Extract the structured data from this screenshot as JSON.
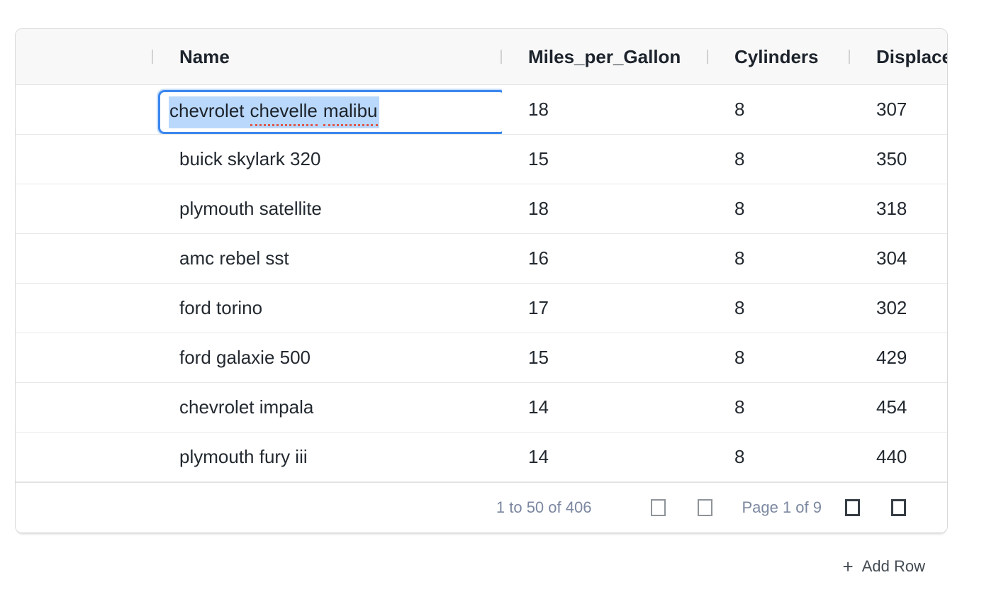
{
  "grid": {
    "columns": [
      {
        "label": ""
      },
      {
        "label": "Name"
      },
      {
        "label": "Miles_per_Gallon"
      },
      {
        "label": "Cylinders"
      },
      {
        "label": "Displacement"
      }
    ],
    "rows": [
      {
        "name": "chevrolet chevelle malibu",
        "mpg": "18",
        "cylinders": "8",
        "displacement": "307",
        "editing": true
      },
      {
        "name": "buick skylark 320",
        "mpg": "15",
        "cylinders": "8",
        "displacement": "350"
      },
      {
        "name": "plymouth satellite",
        "mpg": "18",
        "cylinders": "8",
        "displacement": "318"
      },
      {
        "name": "amc rebel sst",
        "mpg": "16",
        "cylinders": "8",
        "displacement": "304"
      },
      {
        "name": "ford torino",
        "mpg": "17",
        "cylinders": "8",
        "displacement": "302"
      },
      {
        "name": "ford galaxie 500",
        "mpg": "15",
        "cylinders": "8",
        "displacement": "429"
      },
      {
        "name": "chevrolet impala",
        "mpg": "14",
        "cylinders": "8",
        "displacement": "454"
      },
      {
        "name": "plymouth fury iii",
        "mpg": "14",
        "cylinders": "8",
        "displacement": "440"
      }
    ],
    "editor": {
      "value": "chevrolet chevelle malibu",
      "tokens": [
        {
          "text": "chevrolet",
          "misspelled": false
        },
        {
          "text": "chevelle",
          "misspelled": true
        },
        {
          "text": "malibu",
          "misspelled": true
        }
      ]
    },
    "pagination": {
      "range_label": "1 to 50 of 406",
      "first_row": 1,
      "last_row": 50,
      "row_count": 406,
      "page_label": "Page 1 of 9",
      "current_page": 1,
      "total_pages": 9
    }
  },
  "actions": {
    "add_row_icon": "+",
    "add_row_label": "Add Row"
  },
  "colors": {
    "accent_blue": "#3b87ee",
    "selection_blue": "#b9d8fb",
    "misspell_red": "#e0574b",
    "header_bg": "#f8f8f8",
    "pager_text": "#7b87a0"
  }
}
